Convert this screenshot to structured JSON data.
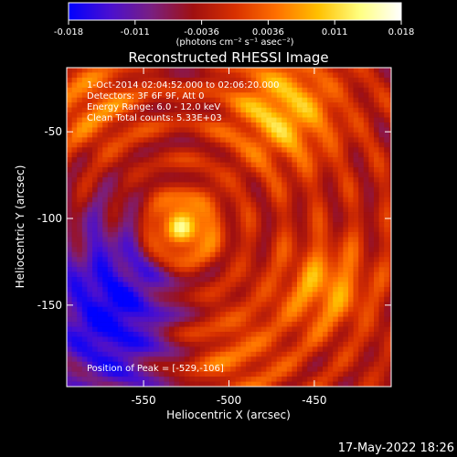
{
  "colorbar": {
    "tick_labels": [
      "-0.018",
      "-0.011",
      "-0.0036",
      "0.0036",
      "0.011",
      "0.018"
    ],
    "unit_label": "(photons cm⁻² s⁻¹ asec⁻²)",
    "stops": [
      "#0000ff",
      "#4a0fd0",
      "#7a1f80",
      "#a01010",
      "#d83000",
      "#ff7000",
      "#ffc000",
      "#ffff80",
      "#ffffff"
    ]
  },
  "chart_data": {
    "type": "heatmap",
    "title": "Reconstructed RHESSI Image",
    "xlabel": "Heliocentric X (arcsec)",
    "ylabel": "Heliocentric Y (arcsec)",
    "xlim": [
      -595,
      -405
    ],
    "ylim": [
      -197,
      -13
    ],
    "x_ticks": [
      -550,
      -500,
      -450
    ],
    "x_tick_labels": [
      "-550",
      "-500",
      "-450"
    ],
    "y_ticks": [
      -50,
      -100,
      -150
    ],
    "y_tick_labels": [
      "-50",
      "-100",
      "-150"
    ],
    "color_range": [
      -0.018,
      0.018
    ],
    "peak": [
      -529,
      -106
    ],
    "grid": false,
    "annotations": {
      "time": "1-Oct-2014 02:04:52.000 to 02:06:20.000",
      "detectors": "Detectors: 3F 6F 9F, Att 0",
      "energy": "Energy Range: 6.0 - 12.0 keV",
      "clean": "Clean    Total counts: 5.33E+03",
      "peak_label": "Position of Peak = [-529,-106]"
    }
  },
  "footer": {
    "date": "17-May-2022 18:26"
  }
}
